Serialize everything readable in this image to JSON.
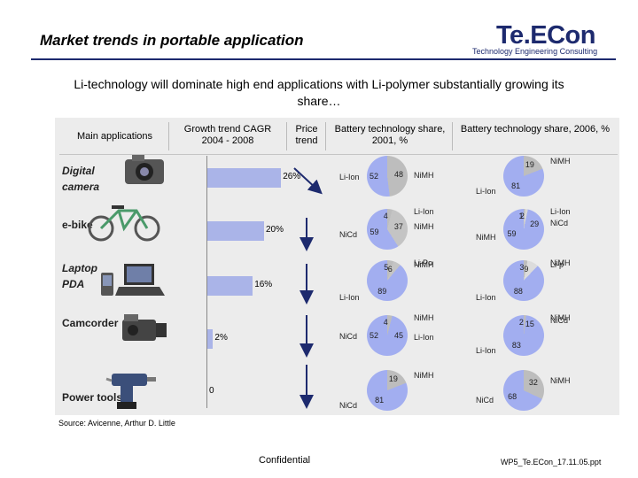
{
  "header": {
    "title": "Market trends in portable application",
    "logo": "Te.ECon",
    "logo_tagline": "Technology Engineering Consulting"
  },
  "subtitle": "Li-technology will dominate high end applications with Li-polymer substantially growing its share…",
  "columns": {
    "applications": "Main applications",
    "growth": "Growth trend CAGR 2004 - 2008",
    "price": "Price trend",
    "share2001": "Battery technology share, 2001, %",
    "share2006": "Battery technology share, 2006, %"
  },
  "rows": [
    {
      "app": "Digital camera",
      "icon": "digital-camera-icon",
      "cagr": 26,
      "cagr_label": "26%",
      "price": "down",
      "share2001": [
        {
          "name": "NiMH",
          "value": 48
        },
        {
          "name": "Li-Ion",
          "value": 52
        }
      ],
      "share2006": [
        {
          "name": "NiMH",
          "value": 19
        },
        {
          "name": "Li-Ion",
          "value": 81
        }
      ]
    },
    {
      "app": "e-bike",
      "icon": "e-bike-icon",
      "cagr": 20,
      "cagr_label": "20%",
      "price": "down",
      "share2001": [
        {
          "name": "Li-Ion",
          "value": 4
        },
        {
          "name": "NiMH",
          "value": 37
        },
        {
          "name": "NiCd",
          "value": 59
        }
      ],
      "share2006": [
        {
          "name": "Li-Ion",
          "value": 1
        },
        {
          "name": "",
          "value": 2
        },
        {
          "name": "NiCd",
          "value": 29
        },
        {
          "name": "NiMH",
          "value": 59
        }
      ]
    },
    {
      "app": "Laptop PDA",
      "icon": "laptop-pda-icon",
      "cagr": 16,
      "cagr_label": "16%",
      "price": "down",
      "share2001": [
        {
          "name": "Li-Po",
          "value": 5
        },
        {
          "name": "NiMH",
          "value": 6
        },
        {
          "name": "Li-Ion",
          "value": 89
        }
      ],
      "share2006": [
        {
          "name": "NiMH",
          "value": 3
        },
        {
          "name": "Li-p",
          "value": 9
        },
        {
          "name": "Li-Ion",
          "value": 88
        }
      ]
    },
    {
      "app": "Camcorder",
      "icon": "camcorder-icon",
      "cagr": 2,
      "cagr_label": "2%",
      "price": "down",
      "share2001": [
        {
          "name": "NiMH",
          "value": 4
        },
        {
          "name": "Li-Ion",
          "value": 45
        },
        {
          "name": "NiCd",
          "value": 52
        }
      ],
      "share2006": [
        {
          "name": "NiMH",
          "value": 2
        },
        {
          "name": "NiCd",
          "value": 15
        },
        {
          "name": "Li-Ion",
          "value": 83
        }
      ]
    },
    {
      "app": "Power tools",
      "icon": "power-drill-icon",
      "cagr": 0,
      "cagr_label": "0",
      "price": "down",
      "share2001": [
        {
          "name": "NiMH",
          "value": 19
        },
        {
          "name": "NiCd",
          "value": 81
        }
      ],
      "share2006": [
        {
          "name": "NiMH",
          "value": 32
        },
        {
          "name": "NiCd",
          "value": 68
        }
      ]
    }
  ],
  "colors": {
    "bar": "#aab4e8",
    "pie_dark": "#bdbdbd",
    "pie_light": "#a2aef0",
    "arrow": "#1d2a6e",
    "logo": "#1d2a6e"
  },
  "source": "Source: Avicenne, Arthur D. Little",
  "footer": {
    "confidential": "Confidential",
    "file": "WP5_Te.ECon_17.11.05.ppt"
  }
}
